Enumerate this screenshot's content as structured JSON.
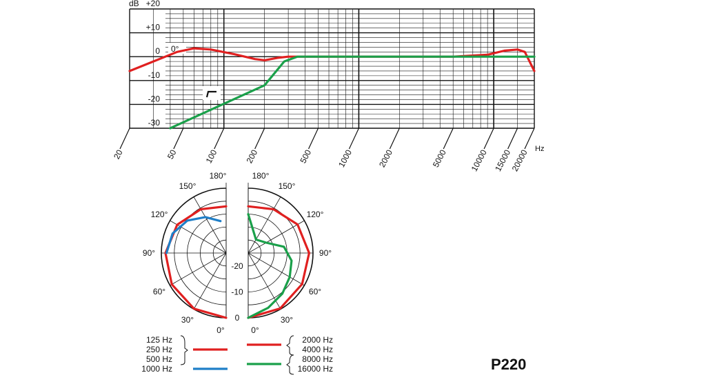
{
  "model": "P220",
  "chart_data": [
    {
      "type": "line",
      "xlabel": "Hz",
      "ylabel": "dB",
      "x_scale": "log",
      "xlim": [
        20,
        20000
      ],
      "ylim": [
        -30,
        20
      ],
      "x_tick_labels": [
        "20",
        "50",
        "100",
        "200",
        "500",
        "1000",
        "2000",
        "5000",
        "10000",
        "15000",
        "20000"
      ],
      "x_tick_values": [
        20,
        50,
        100,
        200,
        500,
        1000,
        2000,
        5000,
        10000,
        15000,
        20000
      ],
      "y_tick_labels": [
        "+20",
        "+10",
        "0",
        "-10",
        "-20",
        "-30"
      ],
      "y_tick_values": [
        20,
        10,
        0,
        -10,
        -20,
        -30
      ],
      "grid": true,
      "annotations": [
        "0°"
      ],
      "series": [
        {
          "color": "#e02020",
          "points": [
            [
              20,
              -6
            ],
            [
              30,
              -2
            ],
            [
              45,
              2
            ],
            [
              60,
              3.5
            ],
            [
              80,
              3
            ],
            [
              120,
              1
            ],
            [
              170,
              -1
            ],
            [
              200,
              -1.5
            ],
            [
              250,
              -0.5
            ],
            [
              300,
              0
            ],
            [
              1000,
              0
            ],
            [
              5000,
              0
            ],
            [
              9000,
              0.8
            ],
            [
              12000,
              2.5
            ],
            [
              15000,
              3
            ],
            [
              17000,
              2
            ],
            [
              20000,
              -6
            ]
          ]
        },
        {
          "color": "#1aa04a",
          "symbol": "low-cut filter",
          "points": [
            [
              40,
              -30
            ],
            [
              200,
              -12
            ],
            [
              280,
              -2
            ],
            [
              350,
              0
            ],
            [
              20000,
              0
            ]
          ]
        }
      ]
    },
    {
      "type": "polar",
      "angle_labels_left": [
        "180°",
        "150°",
        "120°",
        "90°",
        "60°",
        "30°",
        "0°"
      ],
      "angle_labels_right": [
        "180°",
        "150°",
        "120°",
        "90°",
        "60°",
        "30°",
        "0°"
      ],
      "radial_labels": [
        "-20",
        "-10",
        "0"
      ],
      "rlim": [
        -25,
        0
      ],
      "left_half": [
        {
          "color": "#e02020",
          "frequencies": [
            "125 Hz",
            "250 Hz",
            "500 Hz"
          ],
          "points": [
            [
              0,
              0
            ],
            [
              30,
              -0.2
            ],
            [
              60,
              -0.8
            ],
            [
              90,
              -1.6
            ],
            [
              120,
              -3.2
            ],
            [
              150,
              -5.5
            ],
            [
              180,
              -7
            ]
          ]
        },
        {
          "color": "#1f7fc8",
          "frequencies": [
            "1000 Hz"
          ],
          "points": [
            [
              90,
              -2
            ],
            [
              110,
              -3
            ],
            [
              130,
              -5.5
            ],
            [
              150,
              -9
            ],
            [
              170,
              -12.5
            ]
          ]
        }
      ],
      "right_half": [
        {
          "color": "#e02020",
          "frequencies": [
            "2000 Hz",
            "4000 Hz"
          ],
          "points": [
            [
              0,
              0
            ],
            [
              30,
              -0.3
            ],
            [
              60,
              -1
            ],
            [
              90,
              -1.5
            ],
            [
              120,
              -3
            ],
            [
              150,
              -5.5
            ],
            [
              180,
              -7
            ]
          ]
        },
        {
          "color": "#1aa04a",
          "frequencies": [
            "8000 Hz",
            "16000 Hz"
          ],
          "points": [
            [
              0,
              0
            ],
            [
              20,
              -2.5
            ],
            [
              40,
              -4.5
            ],
            [
              60,
              -6.5
            ],
            [
              80,
              -8
            ],
            [
              100,
              -11
            ],
            [
              120,
              -17
            ],
            [
              150,
              -19
            ],
            [
              180,
              -10
            ]
          ]
        }
      ],
      "legend": {
        "left": [
          {
            "labels": [
              "125 Hz",
              "250 Hz",
              "500 Hz"
            ],
            "color": "#e02020"
          },
          {
            "labels": [
              "1000 Hz"
            ],
            "color": "#1f7fc8"
          }
        ],
        "right": [
          {
            "labels": [
              "2000 Hz",
              "4000 Hz"
            ],
            "color": "#e02020"
          },
          {
            "labels": [
              "8000 Hz",
              "16000 Hz"
            ],
            "color": "#1aa04a"
          }
        ]
      }
    }
  ]
}
